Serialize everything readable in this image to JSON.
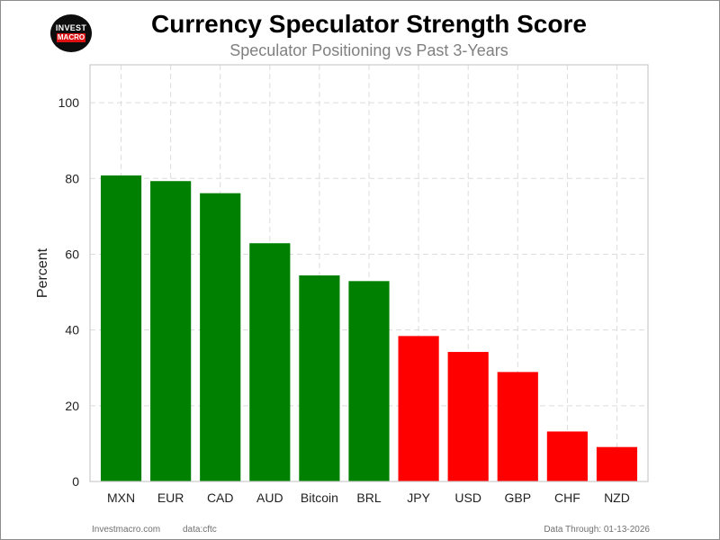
{
  "logo": {
    "line1": "INVEST",
    "line2": "MACRO"
  },
  "footer": {
    "site": "Investmacro.com",
    "source": "data:cftc",
    "data_through": "Data Through: 01-13-2026"
  },
  "colors": {
    "positive": "#008000",
    "negative": "#ff0000",
    "grid": "#dcdcdc",
    "axes_frame": "#cccccc"
  },
  "chart_data": {
    "type": "bar",
    "title": "Currency Speculator Strength Score",
    "subtitle": "Speculator Positioning vs Past 3-Years",
    "xlabel": "",
    "ylabel": "Percent",
    "ylim": [
      0,
      110
    ],
    "yticks": [
      0,
      20,
      40,
      60,
      80,
      100
    ],
    "grid": true,
    "categories": [
      "MXN",
      "EUR",
      "CAD",
      "AUD",
      "Bitcoin",
      "BRL",
      "JPY",
      "USD",
      "GBP",
      "CHF",
      "NZD"
    ],
    "values": [
      80.8,
      79.3,
      76.1,
      62.9,
      54.4,
      52.9,
      38.4,
      34.2,
      28.9,
      13.2,
      9.1
    ],
    "bar_colors": [
      "green",
      "green",
      "green",
      "green",
      "green",
      "green",
      "red",
      "red",
      "red",
      "red",
      "red"
    ]
  }
}
